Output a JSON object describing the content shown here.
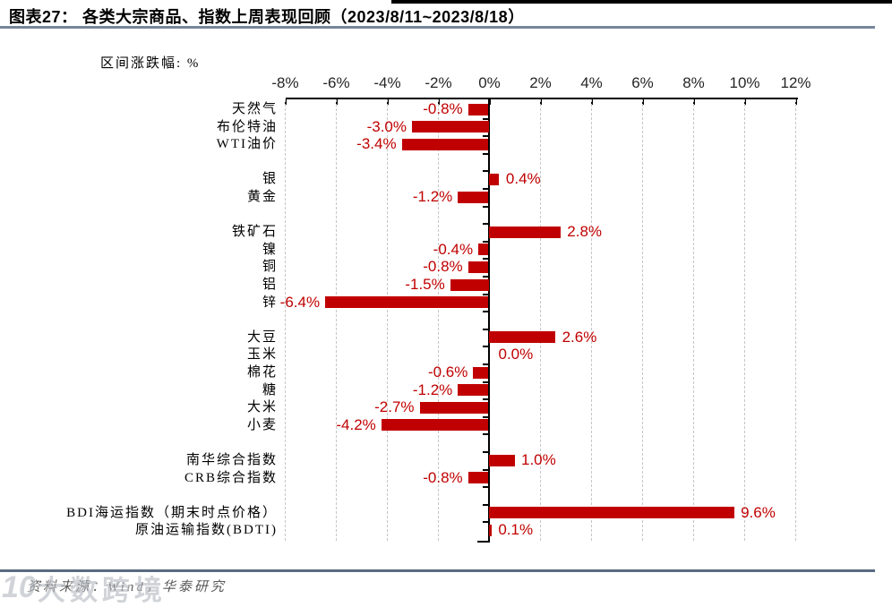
{
  "page": {
    "title": "图表27：  各类大宗商品、指数上周表现回顾（2023/8/11~2023/8/18）",
    "axis_caption": "区间涨跌幅: %",
    "source": "资料来源：Wind，华泰研究",
    "watermark": {
      "logo": "10",
      "text": "大数跨境"
    }
  },
  "chart_data": {
    "type": "bar",
    "orientation": "horizontal",
    "title": "各类大宗商品、指数上周表现回顾（2023/8/11~2023/8/18）",
    "unit": "%",
    "xlim": [
      -8,
      12
    ],
    "x_ticks": [
      -8,
      -6,
      -4,
      -2,
      0,
      2,
      4,
      6,
      8,
      10,
      12
    ],
    "x_tick_labels": [
      "-8%",
      "-6%",
      "-4%",
      "-2%",
      "0%",
      "2%",
      "4%",
      "6%",
      "8%",
      "10%",
      "12%"
    ],
    "grid": "dashed vertical gridlines at every 2%",
    "legend": "none",
    "bar_color": "#C00000",
    "value_label_color": "#C00000",
    "groups": [
      [
        {
          "label": "天然气",
          "value": -0.8,
          "display": "-0.8%"
        },
        {
          "label": "布伦特油",
          "value": -3.0,
          "display": "-3.0%"
        },
        {
          "label": "WTI油价",
          "value": -3.4,
          "display": "-3.4%"
        }
      ],
      [
        {
          "label": "银",
          "value": 0.4,
          "display": "0.4%"
        },
        {
          "label": "黄金",
          "value": -1.2,
          "display": "-1.2%"
        }
      ],
      [
        {
          "label": "铁矿石",
          "value": 2.8,
          "display": "2.8%"
        },
        {
          "label": "镍",
          "value": -0.4,
          "display": "-0.4%"
        },
        {
          "label": "铜",
          "value": -0.8,
          "display": "-0.8%"
        },
        {
          "label": "铝",
          "value": -1.5,
          "display": "-1.5%"
        },
        {
          "label": "锌",
          "value": -6.4,
          "display": "-6.4%"
        }
      ],
      [
        {
          "label": "大豆",
          "value": 2.6,
          "display": "2.6%"
        },
        {
          "label": "玉米",
          "value": 0.0,
          "display": "0.0%"
        },
        {
          "label": "棉花",
          "value": -0.6,
          "display": "-0.6%"
        },
        {
          "label": "糖",
          "value": -1.2,
          "display": "-1.2%"
        },
        {
          "label": "大米",
          "value": -2.7,
          "display": "-2.7%"
        },
        {
          "label": "小麦",
          "value": -4.2,
          "display": "-4.2%"
        }
      ],
      [
        {
          "label": "南华综合指数",
          "value": 1.0,
          "display": "1.0%"
        },
        {
          "label": "CRB综合指数",
          "value": -0.8,
          "display": "-0.8%"
        }
      ],
      [
        {
          "label": "BDI海运指数（期末时点价格）",
          "value": 9.6,
          "display": "9.6%"
        },
        {
          "label": "原油运输指数(BDTI)",
          "value": 0.1,
          "display": "0.1%"
        }
      ]
    ]
  }
}
